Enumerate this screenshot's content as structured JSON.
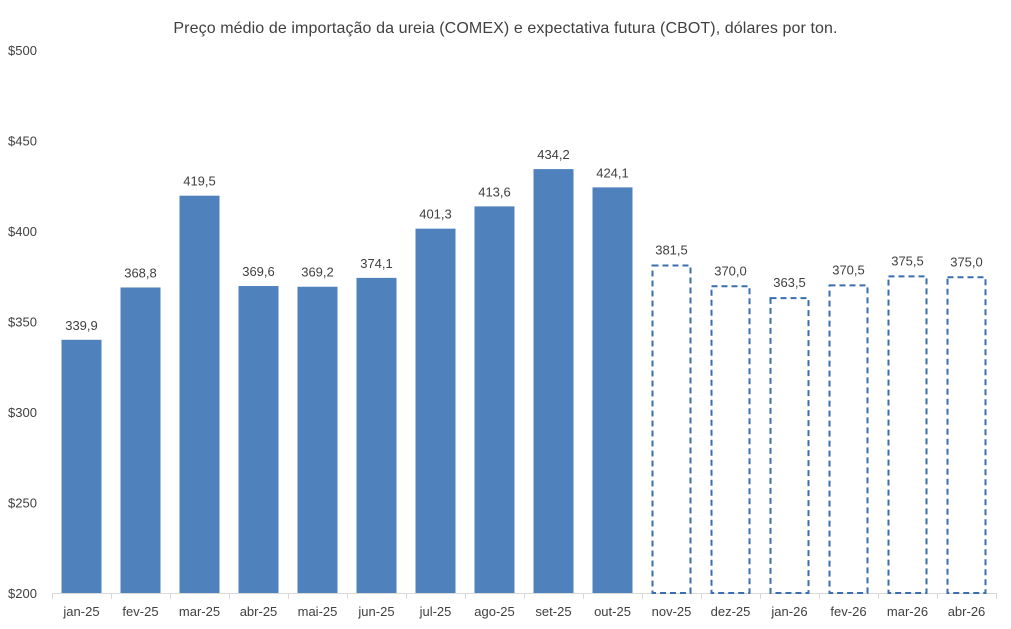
{
  "chart_data": {
    "type": "bar",
    "title": "Preço médio de importação da ureia (COMEX) e expectativa futura (CBOT), dólares por ton.",
    "xlabel": "",
    "ylabel": "",
    "ylim": [
      200,
      500
    ],
    "y_ticks": [
      200,
      250,
      300,
      350,
      400,
      450,
      500
    ],
    "y_tick_labels": [
      "$200",
      "$250",
      "$300",
      "$350",
      "$400",
      "$450",
      "$500"
    ],
    "grid": false,
    "legend": "none",
    "categories": [
      "jan-25",
      "fev-25",
      "mar-25",
      "abr-25",
      "mai-25",
      "jun-25",
      "jul-25",
      "ago-25",
      "set-25",
      "out-25",
      "nov-25",
      "dez-25",
      "jan-26",
      "fev-26",
      "mar-26",
      "abr-26"
    ],
    "series": [
      {
        "name": "COMEX",
        "style": "solid",
        "values": [
          339.9,
          368.8,
          419.5,
          369.6,
          369.2,
          374.1,
          401.3,
          413.6,
          434.2,
          424.1,
          null,
          null,
          null,
          null,
          null,
          null
        ]
      },
      {
        "name": "CBOT",
        "style": "dashed",
        "values": [
          null,
          null,
          null,
          null,
          null,
          null,
          null,
          null,
          null,
          null,
          381.5,
          370.0,
          363.5,
          370.5,
          375.5,
          375.0
        ]
      }
    ],
    "data_labels": [
      "339,9",
      "368,8",
      "419,5",
      "369,6",
      "369,2",
      "374,1",
      "401,3",
      "413,6",
      "434,2",
      "424,1",
      "381,5",
      "370,0",
      "363,5",
      "370,5",
      "375,5",
      "375,0"
    ],
    "colors": {
      "bar_fill": "#4f81bd",
      "bar_outline": "#3a6eb0",
      "axis": "#d9d9d9",
      "text": "#404040"
    }
  }
}
